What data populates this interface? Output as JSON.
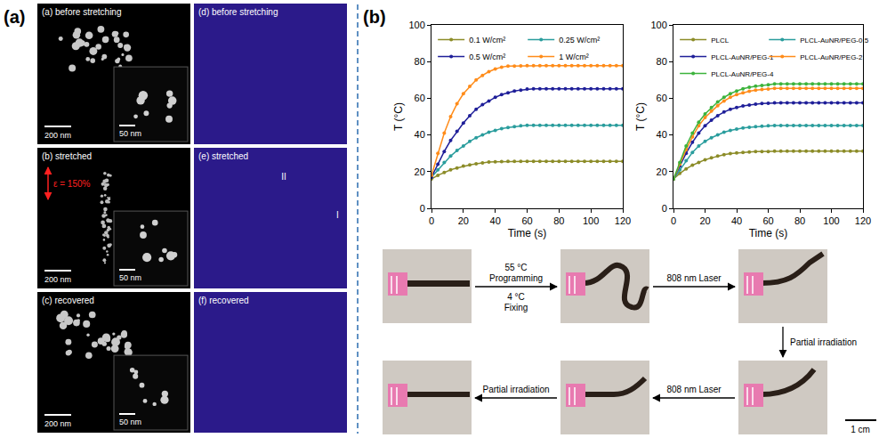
{
  "panel_a": {
    "label": "(a)",
    "micrographs": [
      {
        "title": "(a) before stretching",
        "scale_bar": "200 nm",
        "inset_scale_bar": "50 nm"
      },
      {
        "title": "(b) stretched",
        "strain": "ε = 150%",
        "scale_bar": "200 nm",
        "inset_scale_bar": "50 nm"
      },
      {
        "title": "(c) recovered",
        "scale_bar": "200 nm",
        "inset_scale_bar": "50 nm"
      }
    ],
    "scattering_patterns": [
      {
        "title": "(d) before stretching"
      },
      {
        "title": "(e) stretched",
        "sectors": [
          "I",
          "II"
        ]
      },
      {
        "title": "(f) recovered"
      }
    ]
  },
  "panel_b": {
    "label": "(b)",
    "arrows": [
      {
        "above": [
          "55 °C",
          "Programming"
        ],
        "below": [
          "4 °C",
          "Fixing"
        ]
      },
      {
        "above": [
          "808 nm Laser"
        ]
      },
      {
        "beside": [
          "Partial irradiation"
        ]
      },
      {
        "above": [
          "808 nm Laser"
        ]
      },
      {
        "above": [
          "Partial irradiation"
        ]
      }
    ],
    "scale_bar": "1 cm"
  },
  "chart_data": [
    {
      "type": "line",
      "x_label": "Time (s)",
      "y_label": "T (°C)",
      "x": [
        0,
        4,
        8,
        12,
        16,
        20,
        24,
        28,
        32,
        36,
        40,
        44,
        48,
        52,
        56,
        60,
        64,
        68,
        72,
        76,
        80,
        84,
        88,
        92,
        96,
        100,
        104,
        108,
        112,
        116,
        120
      ],
      "xlim": [
        0,
        120
      ],
      "xticks": [
        0,
        20,
        40,
        60,
        80,
        100,
        120
      ],
      "ylim": [
        0,
        100
      ],
      "yticks": [
        0,
        20,
        40,
        60,
        80,
        100
      ],
      "grid": false,
      "legend": "top",
      "marker": "circle",
      "series": [
        {
          "name": "0.1 W/cm²",
          "color": "#8c8c28",
          "values": [
            16,
            18,
            19.5,
            21,
            22,
            23,
            23.7,
            24.3,
            24.8,
            25.2,
            25.4,
            25.5,
            25.6,
            25.6,
            25.6,
            25.6,
            25.6,
            25.6,
            25.6,
            25.6,
            25.6,
            25.6,
            25.6,
            25.6,
            25.6,
            25.6,
            25.6,
            25.6,
            25.6,
            25.6,
            25.6
          ]
        },
        {
          "name": "0.25 W/cm²",
          "color": "#2a9d9d",
          "values": [
            17,
            21,
            25,
            28.5,
            31.5,
            34,
            36.5,
            38.5,
            40,
            41.5,
            42.5,
            43.5,
            44,
            44.5,
            45,
            45.3,
            45.3,
            45.3,
            45.3,
            45.3,
            45.3,
            45.3,
            45.3,
            45.3,
            45.3,
            45.3,
            45.3,
            45.3,
            45.3,
            45.3,
            45.3
          ]
        },
        {
          "name": "0.5 W/cm²",
          "color": "#1f1f99",
          "values": [
            17,
            24,
            31,
            37,
            42,
            46.5,
            50.5,
            54,
            56.5,
            58.5,
            60.5,
            62,
            63,
            64,
            64.5,
            65,
            65.2,
            65.2,
            65.2,
            65.2,
            65.2,
            65.2,
            65.2,
            65.2,
            65.2,
            65.2,
            65.2,
            65.2,
            65.2,
            65.2,
            65.2
          ]
        },
        {
          "name": "1 W/cm²",
          "color": "#ff8c1a",
          "values": [
            18,
            30,
            41,
            50,
            57,
            62.5,
            66.5,
            70,
            72.5,
            74.5,
            76,
            77,
            77.5,
            77.6,
            77.7,
            77.8,
            77.8,
            77.8,
            77.8,
            77.8,
            77.8,
            77.8,
            77.8,
            77.8,
            77.8,
            77.8,
            77.8,
            77.8,
            77.8,
            77.8,
            77.8
          ]
        }
      ]
    },
    {
      "type": "line",
      "x_label": "Time (s)",
      "y_label": "T (°C)",
      "x": [
        0,
        4,
        8,
        12,
        16,
        20,
        24,
        28,
        32,
        36,
        40,
        44,
        48,
        52,
        56,
        60,
        64,
        68,
        72,
        76,
        80,
        84,
        88,
        92,
        96,
        100,
        104,
        108,
        112,
        116,
        120
      ],
      "xlim": [
        0,
        120
      ],
      "xticks": [
        0,
        20,
        40,
        60,
        80,
        100,
        120
      ],
      "ylim": [
        0,
        100
      ],
      "yticks": [
        0,
        20,
        40,
        60,
        80,
        100
      ],
      "grid": false,
      "legend": "top",
      "marker": "circle",
      "series": [
        {
          "name": "PLCL",
          "color": "#8c8c28",
          "values": [
            16,
            19,
            21.5,
            23.5,
            25,
            26.5,
            27.5,
            28.5,
            29.2,
            29.8,
            30.2,
            30.5,
            30.7,
            30.9,
            31,
            31,
            31.2,
            31.2,
            31.2,
            31.2,
            31.2,
            31.2,
            31.2,
            31.2,
            31.2,
            31.2,
            31.2,
            31.2,
            31.2,
            31.2,
            31.2
          ]
        },
        {
          "name": "PLCL-AuNR/PEG-0.5",
          "color": "#2a9d9d",
          "values": [
            16,
            21,
            26,
            30.5,
            34,
            36.5,
            38.5,
            40,
            41.5,
            42.5,
            43.2,
            43.8,
            44.2,
            44.5,
            44.8,
            45,
            45.2,
            45.2,
            45.2,
            45.2,
            45.2,
            45.2,
            45.2,
            45.2,
            45.2,
            45.2,
            45.2,
            45.2,
            45.2,
            45.2,
            45.2
          ]
        },
        {
          "name": "PLCL-AuNR/PEG-1",
          "color": "#1f1f99",
          "values": [
            16,
            23,
            30,
            36,
            41,
            45,
            48,
            50.5,
            52.5,
            54,
            55,
            55.8,
            56.3,
            56.8,
            57.1,
            57.3,
            57.5,
            57.5,
            57.5,
            57.5,
            57.5,
            57.5,
            57.5,
            57.5,
            57.5,
            57.5,
            57.5,
            57.5,
            57.5,
            57.5,
            57.5
          ]
        },
        {
          "name": "PLCL-AuNR/PEG-2",
          "color": "#ff8c1a",
          "values": [
            16,
            24,
            32,
            39,
            45,
            49.5,
            53,
            56,
            58.5,
            60.5,
            62,
            63,
            63.8,
            64.4,
            64.8,
            65.1,
            65.4,
            65.4,
            65.4,
            65.4,
            65.4,
            65.4,
            65.4,
            65.4,
            65.4,
            65.4,
            65.4,
            65.4,
            65.4,
            65.4,
            65.4
          ]
        },
        {
          "name": "PLCL-AuNR/PEG-4",
          "color": "#3cb33c",
          "values": [
            16,
            25,
            34,
            41,
            47,
            51.5,
            55,
            58,
            60.5,
            62.5,
            64,
            65.2,
            66,
            66.6,
            67,
            67.3,
            67.8,
            67.8,
            67.8,
            67.8,
            67.8,
            67.8,
            67.8,
            67.8,
            67.8,
            67.8,
            67.8,
            67.8,
            67.8,
            67.8,
            67.8
          ]
        }
      ]
    }
  ]
}
